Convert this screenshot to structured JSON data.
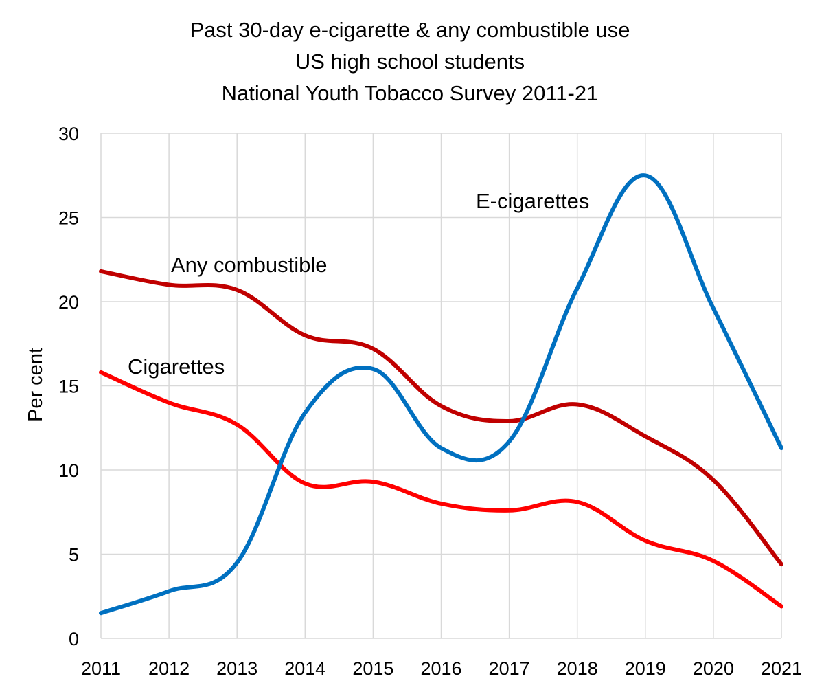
{
  "chart_data": {
    "type": "line",
    "title": [
      "Past 30-day e-cigarette & any combustible use",
      "US high school students",
      "National Youth Tobacco Survey 2011-21"
    ],
    "xlabel": "",
    "ylabel": "Per cent",
    "categories": [
      "2011",
      "2012",
      "2013",
      "2014",
      "2015",
      "2016",
      "2017",
      "2018",
      "2019",
      "2020",
      "2021"
    ],
    "ylim": [
      0,
      30
    ],
    "yticks": [
      0,
      5,
      10,
      15,
      20,
      25,
      30
    ],
    "grid": true,
    "legend": "inline labels",
    "series": [
      {
        "name": "Any combustible",
        "label": "Any combustible",
        "color": "#C00000",
        "values": [
          21.8,
          21.0,
          20.7,
          18.0,
          17.2,
          13.8,
          12.9,
          13.9,
          12.0,
          9.4,
          4.4
        ]
      },
      {
        "name": "Cigarettes",
        "label": "Cigarettes",
        "color": "#FF0000",
        "values": [
          15.8,
          14.0,
          12.7,
          9.2,
          9.3,
          8.0,
          7.6,
          8.1,
          5.8,
          4.6,
          1.9
        ]
      },
      {
        "name": "E-cigarettes",
        "label": "E-cigarettes",
        "color": "#0070C0",
        "values": [
          1.5,
          2.8,
          4.5,
          13.4,
          16.0,
          11.3,
          11.7,
          20.8,
          27.5,
          19.6,
          11.3
        ]
      }
    ]
  }
}
